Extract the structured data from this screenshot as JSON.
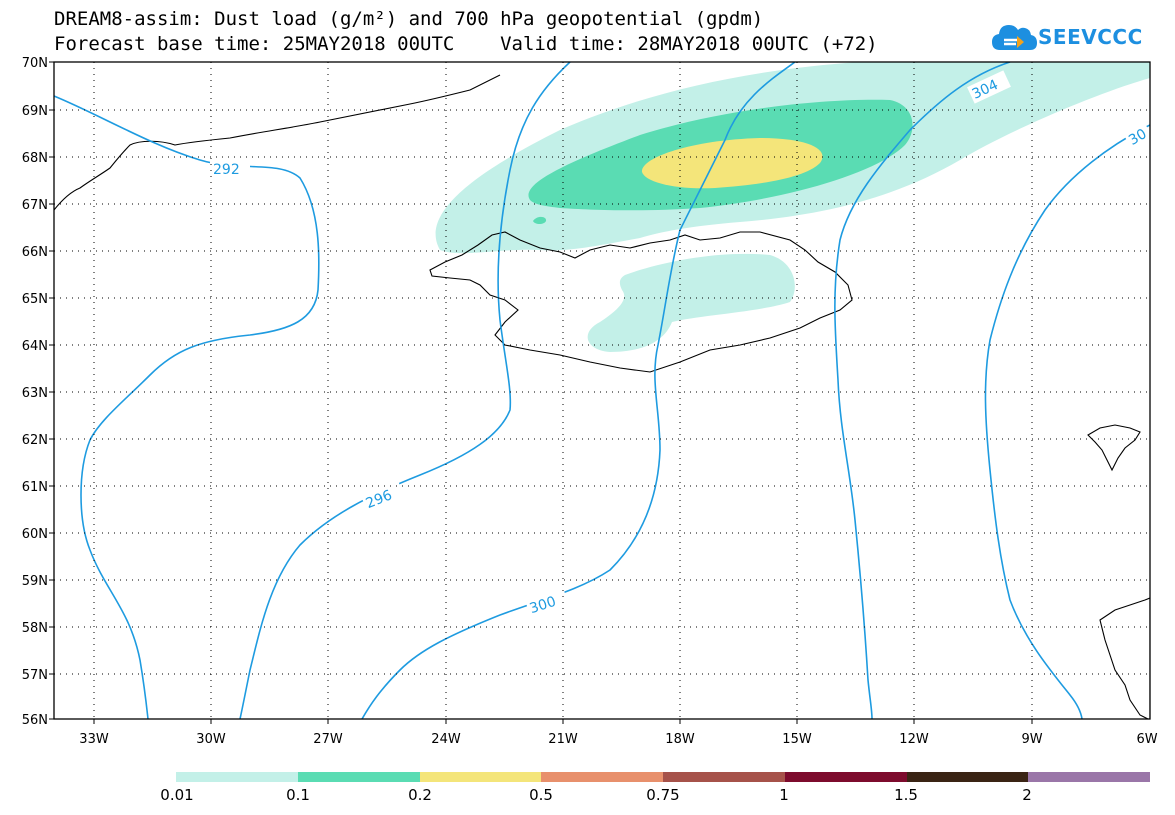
{
  "header": {
    "title_line1": "DREAM8-assim: Dust load (g/m²) and 700 hPa geopotential (gpdm)",
    "title_line2": "Forecast base time: 25MAY2018 00UTC    Valid time: 28MAY2018 00UTC (+72)"
  },
  "logo": {
    "text": "SEEVCCC",
    "icon": "cloud-logo-icon",
    "color": "#1d8fe0"
  },
  "map": {
    "lat_labels": [
      "70N",
      "69N",
      "68N",
      "67N",
      "66N",
      "65N",
      "64N",
      "63N",
      "62N",
      "61N",
      "60N",
      "59N",
      "58N",
      "57N",
      "56N"
    ],
    "lon_labels": [
      "33W",
      "30W",
      "27W",
      "24W",
      "21W",
      "18W",
      "15W",
      "12W",
      "9W",
      "6W"
    ],
    "contour_labels": [
      "292",
      "296",
      "300",
      "304",
      "30"
    ],
    "contour_color": "#1e9be0",
    "coast_color": "#000000"
  },
  "legend": {
    "colors": [
      "#c3f0e8",
      "#5adcb3",
      "#f4e57a",
      "#e8906c",
      "#a6524a",
      "#7d0b2d",
      "#3a2414",
      "#9a76a8"
    ],
    "labels": [
      "0.01",
      "0.1",
      "0.2",
      "0.5",
      "0.75",
      "1",
      "1.5",
      "2"
    ]
  }
}
